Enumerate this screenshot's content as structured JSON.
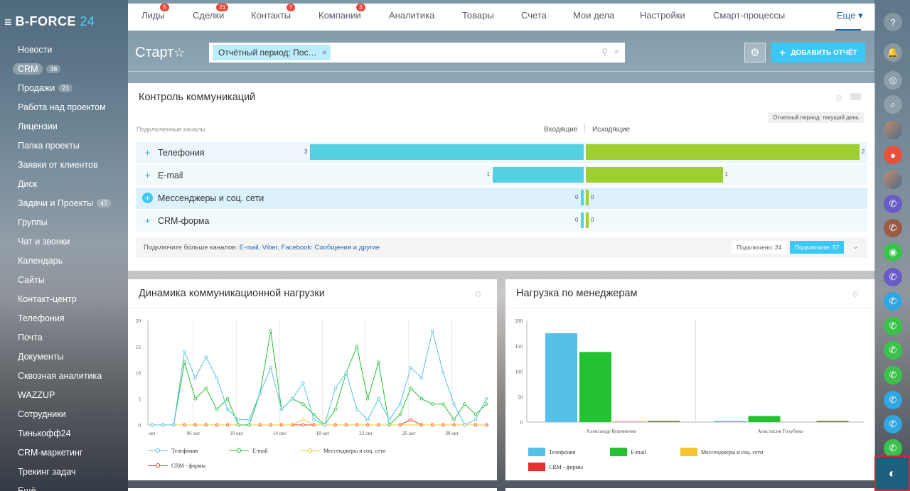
{
  "sidebar": {
    "logo_main": "B-FORCE",
    "logo_num": "24",
    "items": [
      {
        "label": "Новости",
        "count": ""
      },
      {
        "label": "CRM",
        "count": "36"
      },
      {
        "label": "Продажи",
        "count": "21"
      },
      {
        "label": "Работа над проектом",
        "count": ""
      },
      {
        "label": "Лицензии",
        "count": ""
      },
      {
        "label": "Папка проекты",
        "count": ""
      },
      {
        "label": "Заявки от клиентов",
        "count": ""
      },
      {
        "label": "Диск",
        "count": ""
      },
      {
        "label": "Задачи и Проекты",
        "count": "47"
      },
      {
        "label": "Группы",
        "count": ""
      },
      {
        "label": "Чат и звонки",
        "count": ""
      },
      {
        "label": "Календарь",
        "count": ""
      },
      {
        "label": "Сайты",
        "count": ""
      },
      {
        "label": "Контакт-центр",
        "count": ""
      },
      {
        "label": "Телефония",
        "count": ""
      },
      {
        "label": "Почта",
        "count": ""
      },
      {
        "label": "Документы",
        "count": ""
      },
      {
        "label": "Сквозная аналитика",
        "count": ""
      },
      {
        "label": "WAZZUP",
        "count": ""
      },
      {
        "label": "Сотрудники",
        "count": ""
      },
      {
        "label": "Тинькофф24",
        "count": ""
      },
      {
        "label": "CRM-маркетинг",
        "count": ""
      },
      {
        "label": "Трекинг задач",
        "count": ""
      },
      {
        "label": "Ещё",
        "count": ""
      }
    ]
  },
  "topnav": {
    "items": [
      {
        "label": "Лиды",
        "badge": "5"
      },
      {
        "label": "Сделки",
        "badge": "21"
      },
      {
        "label": "Контакты",
        "badge": "7"
      },
      {
        "label": "Компании",
        "badge": "3"
      },
      {
        "label": "Аналитика",
        "badge": ""
      },
      {
        "label": "Товары",
        "badge": ""
      },
      {
        "label": "Счета",
        "badge": ""
      },
      {
        "label": "Мои дела",
        "badge": ""
      },
      {
        "label": "Настройки",
        "badge": ""
      },
      {
        "label": "Смарт-процессы",
        "badge": ""
      }
    ],
    "more_label": "Еще ▾"
  },
  "header": {
    "title": "Старт",
    "filter_chip": "Отчётный период: Пос…",
    "add_report_label": "ДОБАВИТЬ ОТЧЁТ"
  },
  "comm_widget": {
    "title": "Контроль коммуникаций",
    "period_tag": "Отчетный период: текущий день",
    "channels_header": "Подключенные каналы",
    "incoming_header": "Входящие",
    "outgoing_header": "Исходящие",
    "channels": [
      {
        "name": "Телефония",
        "incoming": "3",
        "outgoing": "2"
      },
      {
        "name": "E-mail",
        "incoming": "1",
        "outgoing": "1"
      },
      {
        "name": "Мессенджеры и соц. сети",
        "incoming": "0",
        "outgoing": "0"
      },
      {
        "name": "CRM-форма",
        "incoming": "0",
        "outgoing": "0"
      }
    ],
    "footer_prefix": "Подключите больше каналов: ",
    "footer_links": "E-mail, Viber, Facebook: Сообщения и другие",
    "connected_label": "Подключено: 24",
    "connect_label": "Подключите: 57"
  },
  "dynamics_widget": {
    "title": "Динамика коммуникационной нагрузки",
    "legend": [
      "Телефония",
      "E-mail",
      "Мессенджеры и соц. сети",
      "CRM - формы"
    ]
  },
  "managers_widget": {
    "title": "Нагрузка по менеджерам",
    "legend": [
      "Телефония",
      "E-mail",
      "Мессенджеры и соц. сети",
      "CRM - формы"
    ]
  },
  "colors": {
    "telephony": "#55c1ea",
    "email": "#22c232",
    "messengers": "#f2c52d",
    "crm_forms": "#e53030"
  },
  "chart_data": [
    {
      "type": "line",
      "x": [
        "окт",
        "",
        "",
        "",
        "06 окт",
        "",
        "",
        "",
        "10 окт",
        "",
        "",
        "",
        "14 окт",
        "",
        "",
        "",
        "18 окт",
        "",
        "",
        "",
        "22 окт",
        "",
        "",
        "",
        "26 окт",
        "",
        "",
        "",
        "30 окт",
        "",
        "",
        ""
      ],
      "ylim": [
        0,
        20
      ],
      "yticks": [
        0,
        5,
        10,
        15,
        20
      ],
      "series": [
        {
          "name": "Телефония",
          "values": [
            0,
            0,
            0,
            14,
            9,
            13,
            9,
            3,
            1,
            1,
            6,
            11,
            3,
            5,
            8,
            1,
            0,
            7,
            10,
            3,
            1,
            5,
            1,
            4,
            11,
            9,
            18,
            10,
            4,
            0,
            1,
            5
          ]
        },
        {
          "name": "E-mail",
          "values": [
            0,
            0,
            0,
            12,
            5,
            7,
            3,
            5,
            0,
            0,
            6,
            18,
            3,
            5,
            4,
            2,
            0,
            3,
            10,
            15,
            5,
            12,
            0,
            2,
            7,
            5,
            4,
            4,
            1,
            4,
            2,
            4
          ]
        },
        {
          "name": "Мессенджеры и соц. сети",
          "values": [
            0,
            0,
            0,
            0,
            0,
            0,
            0,
            0,
            0,
            0,
            0,
            0,
            0,
            0,
            1,
            0,
            0,
            0,
            0,
            0,
            0,
            0,
            0,
            0,
            0,
            0,
            0,
            0,
            0,
            0,
            0,
            0
          ]
        },
        {
          "name": "CRM - формы",
          "values": [
            0,
            0,
            0,
            0,
            0,
            0,
            0,
            0,
            0,
            0,
            0,
            0,
            0,
            0,
            0,
            0,
            0,
            0,
            0,
            0,
            0,
            0,
            0,
            0,
            1,
            0,
            0,
            0,
            0,
            0,
            0,
            0
          ]
        }
      ]
    },
    {
      "type": "bar",
      "categories": [
        "Александр Корниенко",
        "Анастасия Голубева"
      ],
      "ylim": [
        0,
        200
      ],
      "yticks": [
        0,
        50,
        100,
        150,
        200
      ],
      "series": [
        {
          "name": "Телефония",
          "values": [
            175,
            1
          ]
        },
        {
          "name": "E-mail",
          "values": [
            138,
            12
          ]
        },
        {
          "name": "Мессенджеры и соц. сети",
          "values": [
            1,
            0
          ]
        },
        {
          "name": "CRM - формы",
          "values": [
            1,
            1
          ]
        }
      ]
    }
  ]
}
